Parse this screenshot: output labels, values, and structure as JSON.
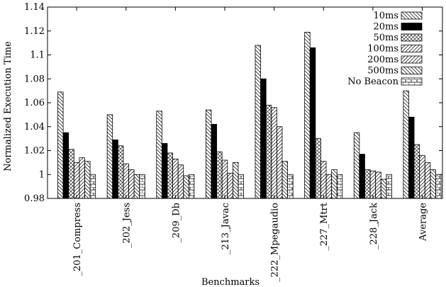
{
  "chart_data": {
    "type": "bar",
    "xlabel": "Benchmarks",
    "ylabel": "Normalized Execution Time",
    "ylim": [
      0.98,
      1.14
    ],
    "yticks": [
      0.98,
      1,
      1.02,
      1.04,
      1.06,
      1.08,
      1.1,
      1.12,
      1.14
    ],
    "ytick_labels": [
      "0.98",
      "1",
      "1.02",
      "1.04",
      "1.06",
      "1.08",
      "1.1",
      "1.12",
      "1.14"
    ],
    "categories": [
      "_201_Compress",
      "_202_Jess",
      "_209_Db",
      "_213_Javac",
      "_222_Mpegaudio",
      "_227_Mtrt",
      "_228_Jack",
      "Average"
    ],
    "legend_position": "top-right",
    "series": [
      {
        "name": "10ms",
        "pattern": "hatch-back",
        "values": [
          1.069,
          1.05,
          1.053,
          1.054,
          1.108,
          1.119,
          1.035,
          1.07
        ]
      },
      {
        "name": "20ms",
        "pattern": "solid",
        "values": [
          1.035,
          1.029,
          1.026,
          1.042,
          1.08,
          1.106,
          1.017,
          1.048
        ]
      },
      {
        "name": "50ms",
        "pattern": "crosshatch",
        "values": [
          1.021,
          1.024,
          1.018,
          1.019,
          1.058,
          1.03,
          1.004,
          1.025
        ]
      },
      {
        "name": "100ms",
        "pattern": "hatch-fwd",
        "values": [
          1.01,
          1.009,
          1.013,
          1.012,
          1.056,
          1.011,
          1.003,
          1.016
        ]
      },
      {
        "name": "200ms",
        "pattern": "hatch-fwd",
        "values": [
          1.014,
          1.004,
          1.008,
          1.001,
          1.04,
          1.0,
          1.002,
          1.01
        ]
      },
      {
        "name": "500ms",
        "pattern": "hatch-back",
        "values": [
          1.011,
          1.0,
          0.999,
          1.01,
          1.011,
          1.004,
          0.996,
          1.004
        ]
      },
      {
        "name": "No Beacon",
        "pattern": "bricks",
        "values": [
          1.0,
          1.0,
          1.0,
          1.0,
          1.0,
          1.0,
          1.0,
          1.0
        ]
      }
    ]
  }
}
